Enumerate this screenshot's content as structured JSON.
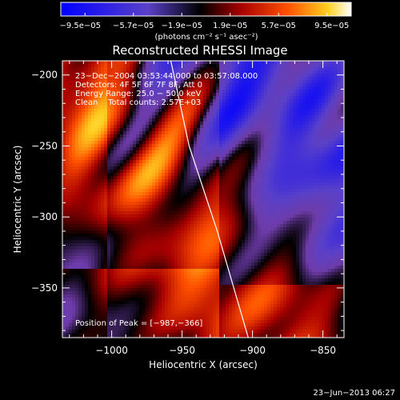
{
  "chart_data": {
    "type": "heatmap",
    "title": "Reconstructed RHESSI Image",
    "xlabel": "Heliocentric X (arcsec)",
    "ylabel": "Heliocentric Y (arcsec)",
    "xlim": [
      -1035,
      -835
    ],
    "ylim": [
      -385,
      -190
    ],
    "x_ticks": [
      -1000,
      -950,
      -900,
      -850
    ],
    "x_tick_labels": [
      "−1000",
      "−950",
      "−900",
      "−850"
    ],
    "y_ticks": [
      -200,
      -250,
      -300,
      -350
    ],
    "y_tick_labels": [
      "−200",
      "−250",
      "−300",
      "−350"
    ],
    "colorbar": {
      "min": -9.5e-05,
      "max": 9.5e-05,
      "tick_labels": [
        "−9.5e−05",
        "−5.7e−05",
        "−1.9e−05",
        "1.9e−05",
        "5.7e−05",
        "9.5e−05"
      ],
      "units_label": "(photons cm⁻² s⁻¹ asec⁻²)"
    },
    "info_lines": [
      "23−Dec−2004 03:53:44.000 to 03:57:08.000",
      "Detectors: 4F 5F 6F 7F 8F, Att 0",
      "Energy Range: 25.0 − 50.0 keV",
      "Clean    Total counts: 2.57E+03"
    ],
    "peak_label": "Position of Peak = [−987,−366]",
    "peak": [
      -987,
      -366
    ],
    "limb_curve": [
      [
        -958,
        -190
      ],
      [
        -945,
        -250
      ],
      [
        -925,
        -310
      ],
      [
        -903,
        -385
      ]
    ]
  },
  "footer_timestamp": "23−Jun−2013 06:27"
}
